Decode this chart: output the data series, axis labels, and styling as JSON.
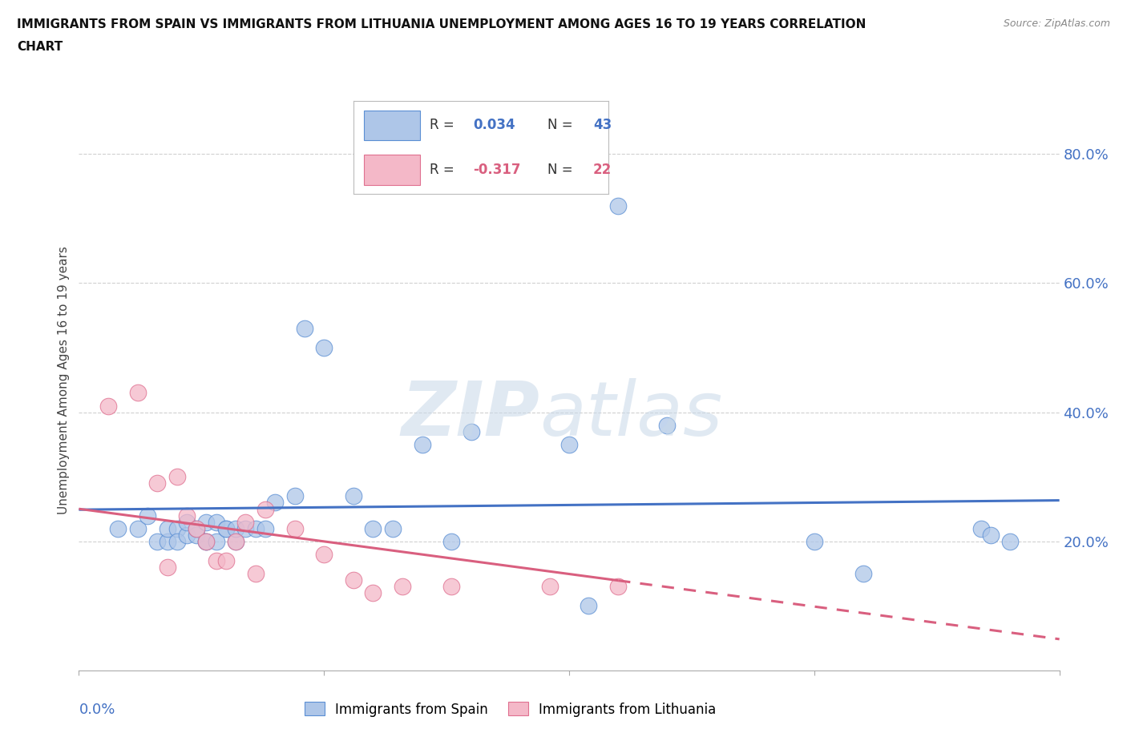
{
  "title_line1": "IMMIGRANTS FROM SPAIN VS IMMIGRANTS FROM LITHUANIA UNEMPLOYMENT AMONG AGES 16 TO 19 YEARS CORRELATION",
  "title_line2": "CHART",
  "source": "Source: ZipAtlas.com",
  "ylabel": "Unemployment Among Ages 16 to 19 years",
  "ylabel_right_ticks": [
    "80.0%",
    "60.0%",
    "40.0%",
    "20.0%"
  ],
  "ylabel_right_vals": [
    0.8,
    0.6,
    0.4,
    0.2
  ],
  "xlim": [
    0.0,
    0.1
  ],
  "ylim": [
    0.0,
    0.9
  ],
  "spain_R": 0.034,
  "spain_N": "43",
  "lithuania_R": -0.317,
  "lithuania_N": "22",
  "spain_color": "#aec6e8",
  "spain_edge_color": "#5b8fd4",
  "spain_line_color": "#4472c4",
  "lithuania_color": "#f4b8c8",
  "lithuania_edge_color": "#e07090",
  "lithuania_line_color": "#d95f7f",
  "background_color": "#ffffff",
  "grid_color": "#d0d0d0",
  "legend_box_color": "#e8e8e8",
  "watermark_zip_color": "#c8d8e8",
  "watermark_atlas_color": "#c8d8e8",
  "spain_scatter_x": [
    0.004,
    0.006,
    0.007,
    0.008,
    0.009,
    0.009,
    0.01,
    0.01,
    0.011,
    0.011,
    0.012,
    0.012,
    0.013,
    0.013,
    0.013,
    0.014,
    0.014,
    0.015,
    0.015,
    0.016,
    0.016,
    0.017,
    0.018,
    0.019,
    0.02,
    0.022,
    0.023,
    0.025,
    0.028,
    0.03,
    0.032,
    0.035,
    0.038,
    0.04,
    0.05,
    0.052,
    0.055,
    0.06,
    0.075,
    0.08,
    0.092,
    0.093,
    0.095
  ],
  "spain_scatter_y": [
    0.22,
    0.22,
    0.24,
    0.2,
    0.2,
    0.22,
    0.22,
    0.2,
    0.21,
    0.23,
    0.21,
    0.22,
    0.2,
    0.2,
    0.23,
    0.2,
    0.23,
    0.22,
    0.22,
    0.2,
    0.22,
    0.22,
    0.22,
    0.22,
    0.26,
    0.27,
    0.53,
    0.5,
    0.27,
    0.22,
    0.22,
    0.35,
    0.2,
    0.37,
    0.35,
    0.1,
    0.72,
    0.38,
    0.2,
    0.15,
    0.22,
    0.21,
    0.2
  ],
  "lithuania_scatter_x": [
    0.003,
    0.006,
    0.008,
    0.009,
    0.01,
    0.011,
    0.012,
    0.013,
    0.014,
    0.015,
    0.016,
    0.017,
    0.018,
    0.019,
    0.022,
    0.025,
    0.028,
    0.03,
    0.033,
    0.038,
    0.048,
    0.055
  ],
  "lithuania_scatter_y": [
    0.41,
    0.43,
    0.29,
    0.16,
    0.3,
    0.24,
    0.22,
    0.2,
    0.17,
    0.17,
    0.2,
    0.23,
    0.15,
    0.25,
    0.22,
    0.18,
    0.14,
    0.12,
    0.13,
    0.13,
    0.13,
    0.13
  ],
  "xtick_positions": [
    0.0,
    0.025,
    0.05,
    0.075,
    0.1
  ]
}
